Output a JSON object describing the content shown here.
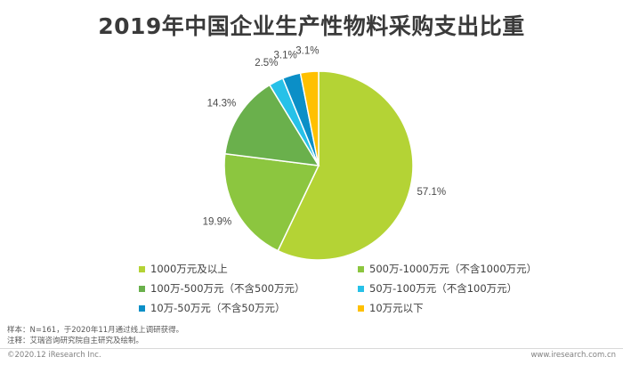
{
  "chart_data": {
    "type": "pie",
    "title": "2019年中国企业生产性物料采购支出比重",
    "legend_position": "bottom",
    "slices": [
      {
        "label": "1000万元及以上",
        "value": 57.1,
        "value_label": "57.1%",
        "color": "#b4d335"
      },
      {
        "label": "500万-1000万元（不含1000万元）",
        "value": 19.9,
        "value_label": "19.9%",
        "color": "#8cc63f"
      },
      {
        "label": "100万-500万元（不含500万元）",
        "value": 14.3,
        "value_label": "14.3%",
        "color": "#6ab04c"
      },
      {
        "label": "50万-100万元（不含100万元）",
        "value": 2.5,
        "value_label": "2.5%",
        "color": "#27c1e8"
      },
      {
        "label": "10万-50万元（不含50万元）",
        "value": 3.1,
        "value_label": "3.1%",
        "color": "#0b8fc7"
      },
      {
        "label": "10万元以下",
        "value": 3.1,
        "value_label": "3.1%",
        "color": "#ffc000"
      }
    ]
  },
  "notes": {
    "sample": "样本：N=161，于2020年11月通过线上调研获得。",
    "source": "注释：艾瑞咨询研究院自主研究及绘制。"
  },
  "footer": {
    "copyright": "©2020.12 iResearch Inc.",
    "website": "www.iresearch.com.cn"
  }
}
